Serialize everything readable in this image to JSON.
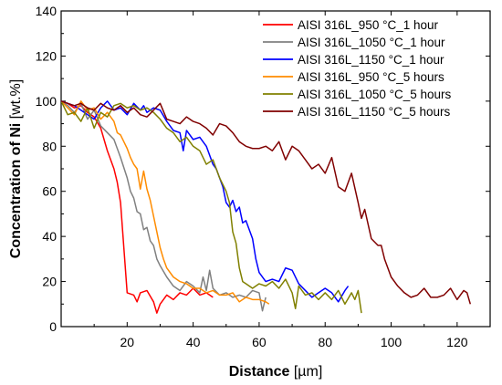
{
  "chart_data": {
    "type": "line",
    "xlabel_bold": "Distance",
    "xlabel_unit": " [µm]",
    "ylabel_bold": "Concentration of Ni",
    "ylabel_unit": " [wt.%]",
    "xlim": [
      0,
      130
    ],
    "ylim": [
      0,
      140
    ],
    "xticks": [
      20,
      40,
      60,
      80,
      100,
      120
    ],
    "yticks": [
      0,
      20,
      40,
      60,
      80,
      100,
      120,
      140
    ],
    "legend_position": "top-right",
    "series": [
      {
        "name": "AISI 316L_950 °C_1 hour",
        "color": "#ff0000",
        "points": [
          [
            0,
            100
          ],
          [
            2,
            99
          ],
          [
            4,
            97
          ],
          [
            6,
            98
          ],
          [
            8,
            95
          ],
          [
            10,
            93
          ],
          [
            12,
            88
          ],
          [
            14,
            78
          ],
          [
            16,
            70
          ],
          [
            17,
            64
          ],
          [
            18,
            55
          ],
          [
            19,
            35
          ],
          [
            20,
            15
          ],
          [
            22,
            14
          ],
          [
            23,
            11
          ],
          [
            24,
            15
          ],
          [
            26,
            16
          ],
          [
            28,
            11
          ],
          [
            29,
            6
          ],
          [
            30,
            10
          ],
          [
            32,
            14
          ],
          [
            34,
            12
          ],
          [
            36,
            15
          ],
          [
            38,
            14
          ],
          [
            40,
            17
          ],
          [
            42,
            14
          ],
          [
            44,
            15
          ],
          [
            46,
            13
          ]
        ]
      },
      {
        "name": "AISI 316L_1050 °C_1 hour",
        "color": "#808080",
        "points": [
          [
            0,
            100
          ],
          [
            2,
            98
          ],
          [
            4,
            95
          ],
          [
            6,
            99
          ],
          [
            8,
            92
          ],
          [
            10,
            96
          ],
          [
            12,
            89
          ],
          [
            14,
            86
          ],
          [
            16,
            83
          ],
          [
            18,
            75
          ],
          [
            20,
            66
          ],
          [
            21,
            60
          ],
          [
            22,
            57
          ],
          [
            23,
            51
          ],
          [
            24,
            50
          ],
          [
            25,
            43
          ],
          [
            26,
            44
          ],
          [
            27,
            38
          ],
          [
            28,
            36
          ],
          [
            29,
            30
          ],
          [
            30,
            27
          ],
          [
            32,
            22
          ],
          [
            34,
            18
          ],
          [
            36,
            16
          ],
          [
            38,
            20
          ],
          [
            40,
            18
          ],
          [
            42,
            15
          ],
          [
            43,
            22
          ],
          [
            44,
            16
          ],
          [
            45,
            25
          ],
          [
            46,
            17
          ],
          [
            48,
            14
          ],
          [
            50,
            15
          ],
          [
            52,
            13
          ],
          [
            54,
            14
          ],
          [
            56,
            13
          ],
          [
            58,
            16
          ],
          [
            60,
            15
          ],
          [
            61,
            7
          ],
          [
            62,
            13
          ]
        ]
      },
      {
        "name": "AISI 316L_1150 °C_1 hour",
        "color": "#0000ff",
        "points": [
          [
            0,
            100
          ],
          [
            2,
            99
          ],
          [
            4,
            98
          ],
          [
            6,
            96
          ],
          [
            8,
            94
          ],
          [
            10,
            92
          ],
          [
            12,
            97
          ],
          [
            14,
            100
          ],
          [
            16,
            96
          ],
          [
            18,
            97
          ],
          [
            20,
            94
          ],
          [
            22,
            99
          ],
          [
            24,
            96
          ],
          [
            25,
            98
          ],
          [
            26,
            95
          ],
          [
            28,
            97
          ],
          [
            30,
            96
          ],
          [
            32,
            91
          ],
          [
            34,
            87
          ],
          [
            36,
            86
          ],
          [
            37,
            78
          ],
          [
            38,
            87
          ],
          [
            40,
            83
          ],
          [
            42,
            84
          ],
          [
            44,
            80
          ],
          [
            46,
            72
          ],
          [
            47,
            70
          ],
          [
            48,
            66
          ],
          [
            49,
            62
          ],
          [
            50,
            55
          ],
          [
            51,
            53
          ],
          [
            52,
            56
          ],
          [
            53,
            51
          ],
          [
            54,
            53
          ],
          [
            55,
            46
          ],
          [
            56,
            47
          ],
          [
            58,
            39
          ],
          [
            59,
            30
          ],
          [
            60,
            24
          ],
          [
            62,
            20
          ],
          [
            64,
            21
          ],
          [
            66,
            20
          ],
          [
            68,
            26
          ],
          [
            70,
            25
          ],
          [
            72,
            19
          ],
          [
            74,
            16
          ],
          [
            76,
            13
          ],
          [
            78,
            15
          ],
          [
            80,
            17
          ],
          [
            82,
            15
          ],
          [
            84,
            11
          ],
          [
            86,
            16
          ],
          [
            87,
            18
          ]
        ]
      },
      {
        "name": "AISI 316L_950 °C_5 hours",
        "color": "#ff8c00",
        "points": [
          [
            0,
            100
          ],
          [
            2,
            97
          ],
          [
            4,
            94
          ],
          [
            6,
            100
          ],
          [
            8,
            96
          ],
          [
            10,
            97
          ],
          [
            12,
            92
          ],
          [
            14,
            95
          ],
          [
            16,
            91
          ],
          [
            17,
            86
          ],
          [
            18,
            85
          ],
          [
            19,
            82
          ],
          [
            20,
            79
          ],
          [
            21,
            75
          ],
          [
            22,
            72
          ],
          [
            23,
            70
          ],
          [
            24,
            61
          ],
          [
            25,
            69
          ],
          [
            26,
            61
          ],
          [
            27,
            56
          ],
          [
            28,
            49
          ],
          [
            29,
            42
          ],
          [
            30,
            35
          ],
          [
            31,
            30
          ],
          [
            32,
            26
          ],
          [
            34,
            22
          ],
          [
            36,
            20
          ],
          [
            38,
            19
          ],
          [
            40,
            17
          ],
          [
            42,
            17
          ],
          [
            44,
            15
          ],
          [
            46,
            16
          ],
          [
            48,
            14
          ],
          [
            50,
            14
          ],
          [
            52,
            15
          ],
          [
            54,
            11
          ],
          [
            56,
            13
          ],
          [
            58,
            12
          ],
          [
            60,
            12
          ],
          [
            62,
            11
          ],
          [
            63,
            10
          ]
        ]
      },
      {
        "name": "AISI 316L_1050 °C_5 hours",
        "color": "#808000",
        "points": [
          [
            0,
            100
          ],
          [
            2,
            94
          ],
          [
            4,
            95
          ],
          [
            6,
            91
          ],
          [
            8,
            97
          ],
          [
            10,
            88
          ],
          [
            12,
            95
          ],
          [
            14,
            93
          ],
          [
            16,
            98
          ],
          [
            18,
            99
          ],
          [
            20,
            97
          ],
          [
            22,
            98
          ],
          [
            24,
            96
          ],
          [
            26,
            97
          ],
          [
            28,
            95
          ],
          [
            30,
            92
          ],
          [
            32,
            88
          ],
          [
            34,
            86
          ],
          [
            36,
            82
          ],
          [
            38,
            84
          ],
          [
            40,
            80
          ],
          [
            42,
            78
          ],
          [
            44,
            72
          ],
          [
            46,
            74
          ],
          [
            48,
            66
          ],
          [
            50,
            60
          ],
          [
            51,
            55
          ],
          [
            52,
            42
          ],
          [
            53,
            37
          ],
          [
            54,
            26
          ],
          [
            55,
            20
          ],
          [
            56,
            19
          ],
          [
            58,
            17
          ],
          [
            60,
            19
          ],
          [
            62,
            18
          ],
          [
            64,
            20
          ],
          [
            66,
            17
          ],
          [
            68,
            21
          ],
          [
            70,
            15
          ],
          [
            71,
            8
          ],
          [
            72,
            18
          ],
          [
            74,
            14
          ],
          [
            76,
            15
          ],
          [
            78,
            12
          ],
          [
            80,
            15
          ],
          [
            82,
            12
          ],
          [
            84,
            16
          ],
          [
            86,
            10
          ],
          [
            88,
            15
          ],
          [
            89,
            12
          ],
          [
            90,
            16
          ],
          [
            91,
            6
          ]
        ]
      },
      {
        "name": "AISI 316L_1150 °C_5 hours",
        "color": "#800000",
        "points": [
          [
            0,
            100
          ],
          [
            2,
            99
          ],
          [
            4,
            98
          ],
          [
            6,
            99
          ],
          [
            8,
            97
          ],
          [
            10,
            96
          ],
          [
            12,
            99
          ],
          [
            14,
            97
          ],
          [
            16,
            96
          ],
          [
            18,
            98
          ],
          [
            20,
            95
          ],
          [
            22,
            97
          ],
          [
            24,
            94
          ],
          [
            26,
            93
          ],
          [
            28,
            96
          ],
          [
            30,
            99
          ],
          [
            32,
            92
          ],
          [
            34,
            91
          ],
          [
            36,
            90
          ],
          [
            38,
            93
          ],
          [
            40,
            91
          ],
          [
            42,
            90
          ],
          [
            44,
            88
          ],
          [
            46,
            85
          ],
          [
            48,
            90
          ],
          [
            50,
            89
          ],
          [
            52,
            86
          ],
          [
            54,
            82
          ],
          [
            56,
            80
          ],
          [
            58,
            79
          ],
          [
            60,
            79
          ],
          [
            62,
            80
          ],
          [
            64,
            78
          ],
          [
            66,
            82
          ],
          [
            68,
            74
          ],
          [
            70,
            80
          ],
          [
            72,
            78
          ],
          [
            74,
            74
          ],
          [
            76,
            70
          ],
          [
            78,
            72
          ],
          [
            80,
            68
          ],
          [
            82,
            75
          ],
          [
            84,
            62
          ],
          [
            86,
            60
          ],
          [
            88,
            68
          ],
          [
            90,
            55
          ],
          [
            91,
            48
          ],
          [
            92,
            52
          ],
          [
            94,
            39
          ],
          [
            96,
            36
          ],
          [
            97,
            36
          ],
          [
            98,
            30
          ],
          [
            100,
            22
          ],
          [
            102,
            18
          ],
          [
            104,
            15
          ],
          [
            106,
            13
          ],
          [
            108,
            14
          ],
          [
            110,
            17
          ],
          [
            112,
            13
          ],
          [
            114,
            13
          ],
          [
            116,
            14
          ],
          [
            118,
            17
          ],
          [
            120,
            12
          ],
          [
            122,
            16
          ],
          [
            123,
            15
          ],
          [
            124,
            10
          ]
        ]
      }
    ]
  }
}
